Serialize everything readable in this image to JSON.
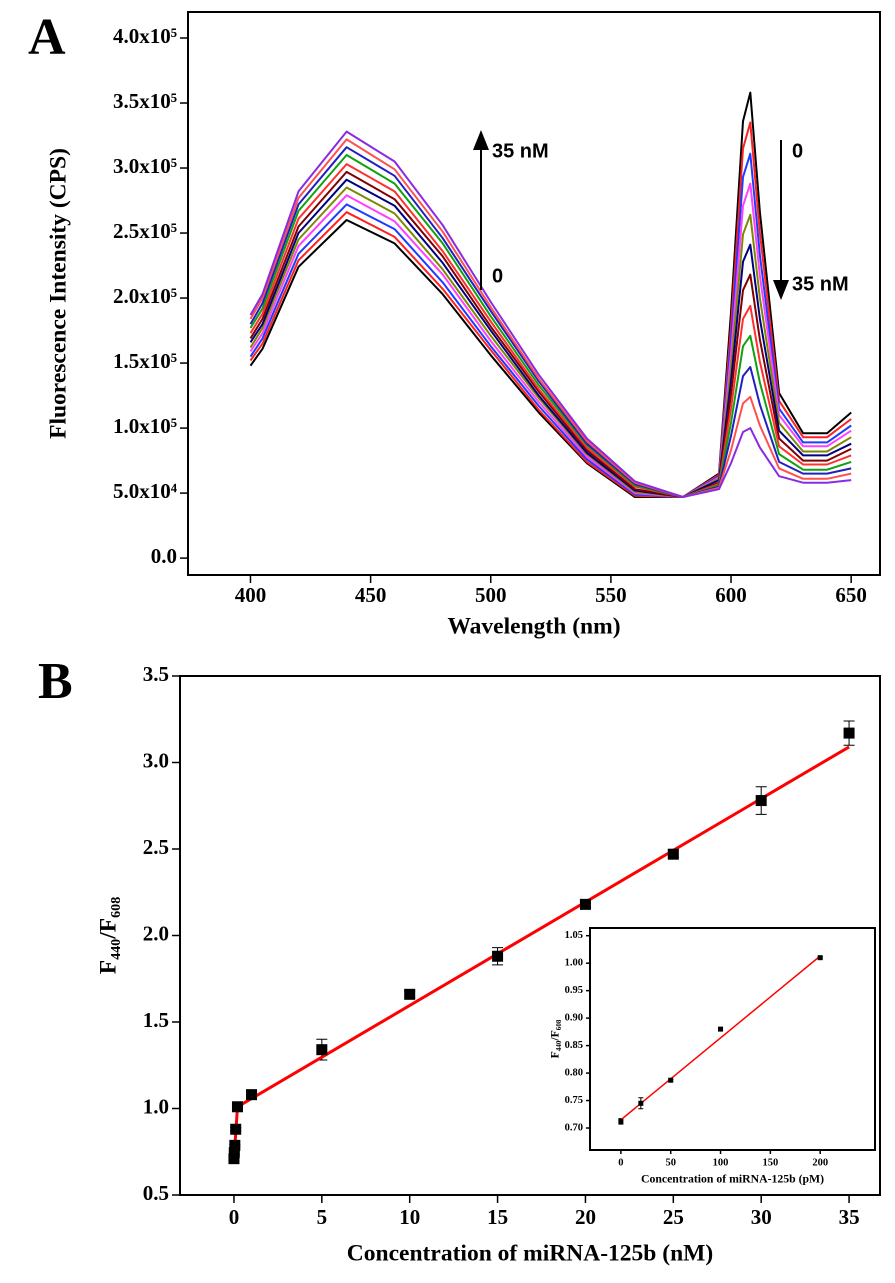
{
  "chart_data": [
    {
      "type": "line",
      "panel_label": "A",
      "xlabel": "Wavelength (nm)",
      "ylabel": "Fluorescence Intensity (CPS)",
      "xlim": [
        374,
        662
      ],
      "xticks": [
        400,
        450,
        500,
        550,
        600,
        650
      ],
      "ylim": [
        -13000,
        420000
      ],
      "yticks": [
        {
          "value": 0,
          "label": "0.0"
        },
        {
          "value": 50000,
          "label": "5.0x10⁴"
        },
        {
          "value": 100000,
          "label": "1.0x10⁵"
        },
        {
          "value": 150000,
          "label": "1.5x10⁵"
        },
        {
          "value": 200000,
          "label": "2.0x10⁵"
        },
        {
          "value": 250000,
          "label": "2.5x10⁵"
        },
        {
          "value": 300000,
          "label": "3.0x10⁵"
        },
        {
          "value": 350000,
          "label": "3.5x10⁵"
        },
        {
          "value": 400000,
          "label": "4.0x10⁵"
        }
      ],
      "annotations": [
        "35 nM",
        "0",
        "0",
        "35 nM"
      ],
      "x": [
        400,
        405,
        420,
        440,
        460,
        480,
        500,
        520,
        540,
        560,
        580,
        595,
        600,
        605,
        608,
        612,
        620,
        630,
        640,
        650
      ],
      "series": [
        {
          "color": "#000000",
          "values": [
            148000,
            161000,
            224000,
            260000,
            242000,
            203000,
            156000,
            112000,
            73000,
            47000,
            47000,
            65000,
            189000,
            336000,
            358000,
            266000,
            127000,
            96000,
            96000,
            112000
          ]
        },
        {
          "color": "#ff2020",
          "values": [
            152000,
            165000,
            229000,
            266000,
            247000,
            207000,
            160000,
            114000,
            74000,
            48000,
            47000,
            64000,
            178000,
            315000,
            335000,
            250000,
            121000,
            93000,
            93000,
            107000
          ]
        },
        {
          "color": "#1e3cff",
          "values": [
            155000,
            169000,
            234000,
            272000,
            253000,
            212000,
            163000,
            117000,
            76000,
            49000,
            47000,
            63000,
            167000,
            293000,
            311000,
            233000,
            115000,
            89000,
            89000,
            102000
          ]
        },
        {
          "color": "#ff40ff",
          "values": [
            159000,
            173000,
            240000,
            279000,
            259000,
            218000,
            167000,
            120000,
            78000,
            50000,
            47000,
            62000,
            157000,
            271000,
            288000,
            217000,
            110000,
            86000,
            86000,
            98000
          ]
        },
        {
          "color": "#7a8a00",
          "values": [
            162000,
            177000,
            245000,
            285000,
            265000,
            222000,
            171000,
            123000,
            80000,
            51000,
            47000,
            61000,
            146000,
            249000,
            264000,
            200000,
            104000,
            82000,
            82000,
            93000
          ]
        },
        {
          "color": "#000080",
          "values": [
            166000,
            180000,
            250000,
            291000,
            271000,
            227000,
            175000,
            125000,
            81000,
            52000,
            47000,
            60000,
            136000,
            228000,
            241000,
            184000,
            98000,
            79000,
            79000,
            88000
          ]
        },
        {
          "color": "#800000",
          "values": [
            169000,
            184000,
            255000,
            297000,
            276000,
            232000,
            178000,
            128000,
            83000,
            53000,
            47000,
            58000,
            126000,
            206000,
            218000,
            168000,
            92000,
            75000,
            75000,
            84000
          ]
        },
        {
          "color": "#ff3030",
          "values": [
            173000,
            188000,
            261000,
            303000,
            282000,
            236000,
            182000,
            130000,
            85000,
            55000,
            47000,
            57000,
            115000,
            184000,
            194000,
            151000,
            86000,
            72000,
            72000,
            79000
          ]
        },
        {
          "color": "#10a010",
          "values": [
            177000,
            192000,
            267000,
            310000,
            288000,
            242000,
            186000,
            133000,
            87000,
            56000,
            47000,
            56000,
            104000,
            163000,
            171000,
            135000,
            80000,
            68000,
            68000,
            74000
          ]
        },
        {
          "color": "#2020c0",
          "values": [
            180000,
            196000,
            272000,
            316000,
            294000,
            246000,
            190000,
            136000,
            88000,
            57000,
            47000,
            55000,
            94000,
            140000,
            147000,
            118000,
            74000,
            65000,
            65000,
            69000
          ]
        },
        {
          "color": "#ff5050",
          "values": [
            184000,
            200000,
            277000,
            322000,
            299000,
            251000,
            193000,
            138000,
            90000,
            58000,
            47000,
            54000,
            83000,
            119000,
            124000,
            102000,
            69000,
            61000,
            61000,
            65000
          ]
        },
        {
          "color": "#8a2be2",
          "values": [
            187000,
            203000,
            282000,
            328000,
            305000,
            256000,
            197000,
            141000,
            92000,
            59000,
            47000,
            53000,
            73000,
            97000,
            100000,
            85000,
            63000,
            58000,
            58000,
            60000
          ]
        }
      ]
    },
    {
      "type": "scatter",
      "panel_label": "B",
      "xlabel": "Concentration of miRNA-125b (nM)",
      "ylabel": "F₄₄₀/F₆₀₈",
      "xlim": [
        -3.07,
        36.76
      ],
      "xticks": [
        0,
        5,
        10,
        15,
        20,
        25,
        30,
        35
      ],
      "ylim": [
        0.5,
        3.5
      ],
      "yticks": [
        0.5,
        {
          "value": 1,
          "label": "1.0"
        },
        1.5,
        {
          "value": 2,
          "label": "2.0"
        },
        2.5,
        {
          "value": 3,
          "label": "3.0"
        },
        3.5
      ],
      "series": [
        {
          "color": "#000000",
          "x": [
            0,
            0.02,
            0.05,
            0.1,
            0.2,
            1,
            5,
            10,
            15,
            20,
            25,
            30,
            35
          ],
          "values": [
            0.71,
            0.745,
            0.787,
            0.88,
            1.01,
            1.08,
            1.34,
            1.66,
            1.88,
            2.18,
            2.47,
            2.78,
            3.17
          ],
          "errors": [
            0.01,
            0.01,
            0.005,
            0.01,
            0.005,
            0.02,
            0.06,
            0.02,
            0.05,
            0.02,
            0.02,
            0.08,
            0.07
          ]
        }
      ],
      "fit": {
        "color": "#ff0000",
        "x": [
          0,
          0.2,
          35
        ],
        "values": [
          0.71,
          1.01,
          3.09
        ]
      }
    },
    {
      "type": "scatter",
      "xlabel": "Concentration of miRNA-125b (pM)",
      "ylabel": "F₄₄₀/F₆₀₈",
      "xlim": [
        -31,
        255
      ],
      "xticks": [
        0,
        50,
        100,
        150,
        200
      ],
      "ylim": [
        0.66,
        1.064
      ],
      "yticks": [
        {
          "value": 0.7,
          "label": "0.70"
        },
        0.75,
        {
          "value": 0.8,
          "label": "0.80"
        },
        0.85,
        {
          "value": 0.9,
          "label": "0.90"
        },
        0.95,
        {
          "value": 1,
          "label": "1.00"
        },
        1.05
      ],
      "series": [
        {
          "color": "#000000",
          "x": [
            0,
            20,
            50,
            100,
            200
          ],
          "values": [
            0.712,
            0.745,
            0.787,
            0.88,
            1.01
          ],
          "errors": [
            0.005,
            0.01,
            0.002,
            0.002,
            0.002
          ]
        }
      ],
      "fit": {
        "color": "#ff0000",
        "x": [
          0,
          200
        ],
        "values": [
          0.715,
          1.013
        ]
      }
    }
  ]
}
